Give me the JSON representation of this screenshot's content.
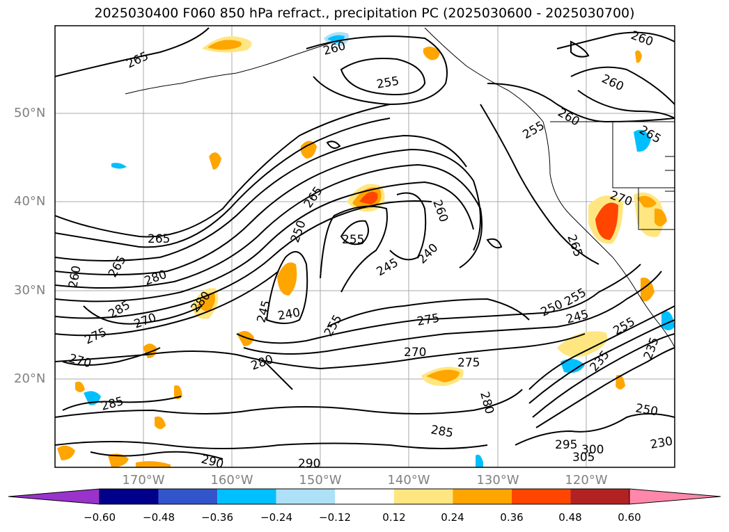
{
  "title": "2025030400 F060 850 hPa refract., precipitation PC (2025030600 - 2025030700)",
  "lat_labels": [
    "50°N",
    "40°N",
    "30°N",
    "20°N"
  ],
  "lon_labels": [
    "170°W",
    "160°W",
    "150°W",
    "140°W",
    "130°W",
    "120°W"
  ],
  "contour_labels": [
    "265",
    "260",
    "255",
    "260",
    "260",
    "255",
    "260",
    "265",
    "265",
    "260",
    "265",
    "255",
    "240",
    "245",
    "270",
    "250",
    "280",
    "280",
    "265",
    "260",
    "285",
    "275",
    "270",
    "270",
    "280",
    "240",
    "245",
    "255",
    "275",
    "270",
    "275",
    "280",
    "285",
    "290",
    "290",
    "285",
    "295",
    "300",
    "305",
    "250",
    "245",
    "235",
    "255",
    "250",
    "235",
    "265",
    "255",
    "230"
  ],
  "colorbar": {
    "ticks": [
      "−0.60",
      "−0.48",
      "−0.36",
      "−0.24",
      "−0.12",
      "0.12",
      "0.24",
      "0.36",
      "0.48",
      "0.60"
    ],
    "colors": [
      "#9933cc",
      "#00008b",
      "#3355cc",
      "#00bfff",
      "#aee0f7",
      "#ffffff",
      "#ffe680",
      "#ffa500",
      "#ff4500",
      "#b22222",
      "#ff88aa"
    ]
  }
}
